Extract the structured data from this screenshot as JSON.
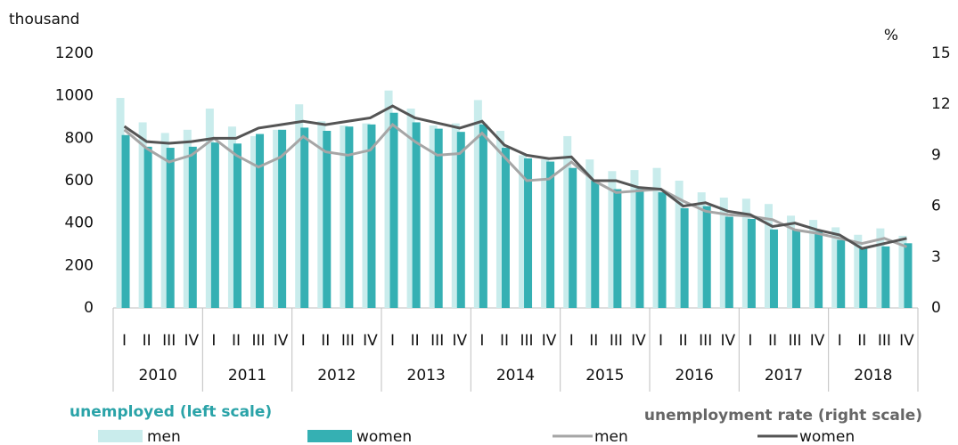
{
  "chart_data": {
    "type": "bar",
    "y_label": "thousand",
    "y2_label": "%",
    "categories": [
      "I",
      "II",
      "III",
      "IV",
      "I",
      "II",
      "III",
      "IV",
      "I",
      "II",
      "III",
      "IV",
      "I",
      "II",
      "III",
      "IV",
      "I",
      "II",
      "III",
      "IV",
      "I",
      "II",
      "III",
      "IV",
      "I",
      "II",
      "III",
      "IV",
      "I",
      "II",
      "III",
      "IV",
      "I",
      "II",
      "III",
      "IV"
    ],
    "groups": [
      "2010",
      "2011",
      "2012",
      "2013",
      "2014",
      "2015",
      "2016",
      "2017",
      "2018"
    ],
    "ylim": [
      0,
      1200
    ],
    "yticks": [
      0,
      200,
      400,
      600,
      800,
      1000,
      1200
    ],
    "y2lim": [
      0,
      15
    ],
    "y2ticks": [
      0,
      3,
      6,
      9,
      12,
      15
    ],
    "legend_titles": [
      "unemployed (left scale)",
      "unemployment rate (right scale)"
    ],
    "series": [
      {
        "name": "men",
        "type": "bar",
        "color": "#c9ecec",
        "values": [
          990,
          875,
          825,
          840,
          940,
          855,
          810,
          840,
          960,
          880,
          860,
          870,
          1025,
          940,
          860,
          870,
          980,
          835,
          720,
          700,
          810,
          700,
          645,
          650,
          660,
          600,
          545,
          520,
          515,
          490,
          435,
          415,
          380,
          345,
          375,
          340
        ]
      },
      {
        "name": "women",
        "type": "bar",
        "color": "#35b0b3",
        "values": [
          815,
          760,
          755,
          760,
          780,
          775,
          820,
          840,
          850,
          835,
          855,
          865,
          920,
          875,
          845,
          830,
          865,
          755,
          705,
          690,
          660,
          600,
          560,
          560,
          545,
          470,
          480,
          430,
          420,
          370,
          370,
          360,
          320,
          280,
          290,
          305
        ]
      },
      {
        "name": "men",
        "type": "line",
        "axis": "y2",
        "color": "#a6a6a6",
        "values": [
          10.5,
          9.4,
          8.6,
          9.0,
          10.0,
          9.0,
          8.3,
          8.9,
          10.1,
          9.2,
          9.0,
          9.3,
          10.8,
          9.8,
          9.0,
          9.1,
          10.3,
          8.9,
          7.5,
          7.6,
          8.6,
          7.5,
          6.8,
          6.9,
          7.0,
          6.3,
          5.7,
          5.5,
          5.4,
          5.2,
          4.6,
          4.4,
          4.1,
          3.8,
          4.1,
          3.6
        ]
      },
      {
        "name": "women",
        "type": "line",
        "axis": "y2",
        "color": "#555555",
        "values": [
          10.7,
          9.8,
          9.7,
          9.8,
          10.0,
          10.0,
          10.6,
          10.8,
          11.0,
          10.8,
          11.0,
          11.2,
          11.9,
          11.2,
          10.9,
          10.6,
          11.0,
          9.6,
          9.0,
          8.8,
          8.9,
          7.5,
          7.5,
          7.1,
          7.0,
          6.0,
          6.2,
          5.7,
          5.5,
          4.8,
          5.0,
          4.6,
          4.3,
          3.5,
          3.8,
          4.1
        ]
      }
    ]
  }
}
